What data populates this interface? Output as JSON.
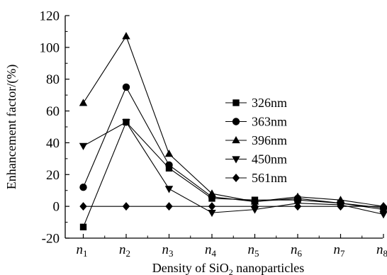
{
  "chart_data": {
    "type": "line",
    "xlabel": {
      "prefix": "Density of SiO",
      "sub": "2",
      "suffix": " nanoparticles"
    },
    "ylabel": "Enhancement factor/(%)",
    "categories": [
      {
        "base": "n",
        "sub": "1"
      },
      {
        "base": "n",
        "sub": "2"
      },
      {
        "base": "n",
        "sub": "3"
      },
      {
        "base": "n",
        "sub": "4"
      },
      {
        "base": "n",
        "sub": "5"
      },
      {
        "base": "n",
        "sub": "6"
      },
      {
        "base": "n",
        "sub": "7"
      },
      {
        "base": "n",
        "sub": "8"
      }
    ],
    "ylim": [
      -20,
      120
    ],
    "yticks": [
      -20,
      0,
      20,
      40,
      60,
      80,
      100,
      120
    ],
    "grid": false,
    "legend_position": "center-right",
    "series": [
      {
        "name": "326nm",
        "marker": "square",
        "values": [
          -13,
          53,
          24,
          5,
          4,
          4,
          2,
          -2
        ]
      },
      {
        "name": "363nm",
        "marker": "circle",
        "values": [
          12,
          75,
          26,
          6,
          3,
          5,
          2,
          -1
        ]
      },
      {
        "name": "396nm",
        "marker": "triangle-up",
        "values": [
          65,
          107,
          33,
          8,
          3,
          6,
          4,
          0
        ]
      },
      {
        "name": "450nm",
        "marker": "triangle-down",
        "values": [
          38,
          53,
          11,
          -4,
          -2,
          2,
          1,
          -5
        ]
      },
      {
        "name": "561nm",
        "marker": "diamond",
        "values": [
          0,
          0,
          0,
          0,
          0,
          0,
          0,
          0
        ]
      }
    ]
  }
}
